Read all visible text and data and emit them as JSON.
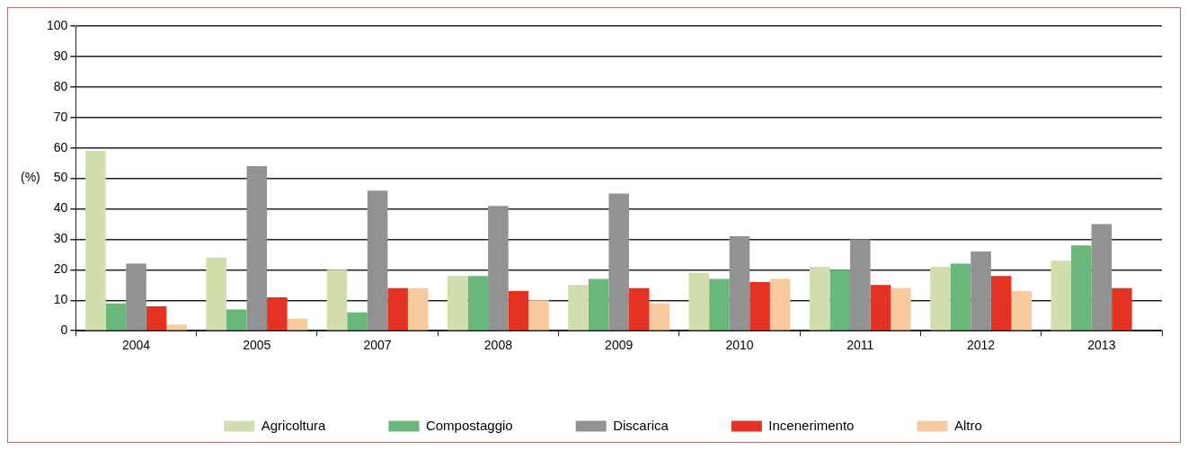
{
  "chart_data": {
    "type": "bar",
    "ylabel": "(%)",
    "categories": [
      "2004",
      "2005",
      "2007",
      "2008",
      "2009",
      "2010",
      "2011",
      "2012",
      "2013"
    ],
    "series": [
      {
        "name": "Agricoltura",
        "color": "#cfdeac",
        "values": [
          59,
          24,
          20,
          18,
          15,
          19,
          21,
          21,
          23
        ]
      },
      {
        "name": "Compostaggio",
        "color": "#6ab77b",
        "values": [
          9,
          7,
          6,
          18,
          17,
          17,
          20,
          22,
          28
        ]
      },
      {
        "name": "Discarica",
        "color": "#929292",
        "values": [
          22,
          54,
          46,
          41,
          45,
          31,
          30,
          26,
          35
        ]
      },
      {
        "name": "Incenerimento",
        "color": "#e43323",
        "values": [
          8,
          11,
          14,
          13,
          14,
          16,
          15,
          18,
          14
        ]
      },
      {
        "name": "Altro",
        "color": "#f9c9a0",
        "values": [
          2,
          4,
          14,
          10,
          9,
          17,
          14,
          13,
          null
        ]
      }
    ],
    "ylim": [
      0,
      100
    ],
    "yticks": [
      0,
      10,
      20,
      30,
      40,
      50,
      60,
      70,
      80,
      90,
      100
    ],
    "grid": "y",
    "legend": "bottom"
  }
}
